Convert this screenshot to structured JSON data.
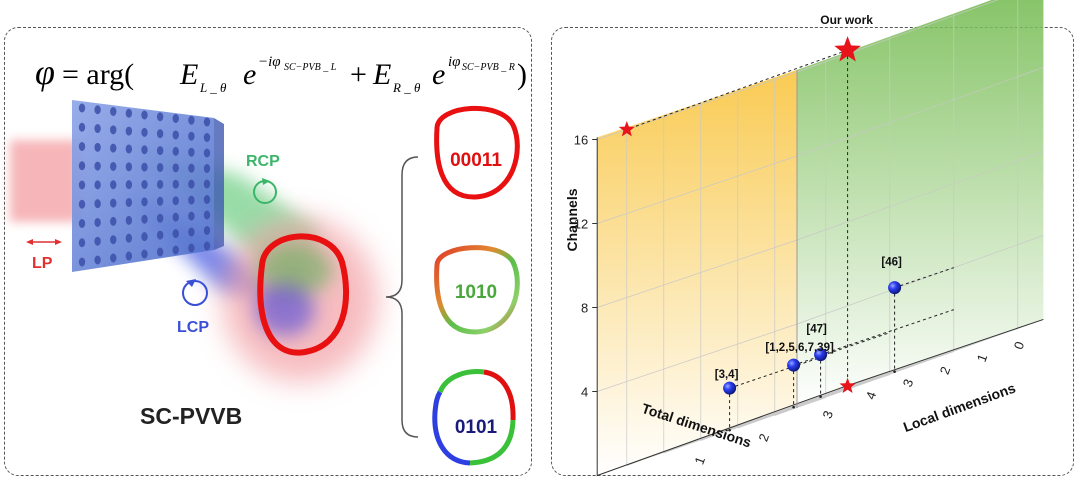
{
  "left": {
    "equation": {
      "phi": "φ",
      "equals": "= arg(",
      "E": "E",
      "sub_L": "L _ θ",
      "sub_R": "R _ θ",
      "e": "e",
      "sup_L": "−iφ",
      "sup_L_sub": "SC−PVB _ L",
      "sup_R": "iφ",
      "sup_R_sub": "SC−PVB _ R",
      "plus": "+",
      "close": ")"
    },
    "label_lp": "LP",
    "label_rcp": "RCP",
    "label_lcp": "LCP",
    "title": "SC-PVVB",
    "codes": [
      "00011",
      "1010",
      "0101"
    ],
    "colors": {
      "lp": "#e03030",
      "rcp": "#3bb56a",
      "lcp": "#3a4fd8",
      "code_red": "#e01010",
      "code_green": "#4aa83a",
      "code_blue": "#1a1a7a"
    }
  },
  "right": {
    "chart_data": {
      "type": "scatter3d",
      "axes": {
        "x": {
          "label": "Total dimensions",
          "ticks": [
            "0",
            "1",
            "2",
            "3",
            "4"
          ]
        },
        "y": {
          "label": "Local dimensions",
          "ticks": [
            "0",
            "1",
            "2",
            "3"
          ]
        },
        "z": {
          "label": "Channels",
          "ticks": [
            "4",
            "8",
            "12",
            "16"
          ],
          "range": [
            0,
            16
          ]
        }
      },
      "points": [
        {
          "label": "[3,4]",
          "total": 2,
          "local": 0,
          "channels": 2,
          "marker": "sphere"
        },
        {
          "label": "[1,2,5,6,7,39]",
          "total": 2,
          "local": 1,
          "channels": 2,
          "marker": "sphere"
        },
        {
          "label": "[46]",
          "total": 1,
          "local": 2,
          "channels": 4,
          "marker": "sphere"
        },
        {
          "label": "[47]",
          "total": 3,
          "local": 2,
          "channels": 2,
          "marker": "sphere"
        },
        {
          "label": "Our work",
          "total": 4,
          "local": 3,
          "channels": 16,
          "marker": "star"
        }
      ],
      "projections": [
        {
          "type": "star",
          "on": "back-left-wall",
          "total": 4,
          "channels": 16
        },
        {
          "type": "star",
          "on": "floor",
          "total": 4,
          "local": 3
        }
      ],
      "colors": {
        "sphere": "#1f2fe0",
        "star": "#e8141c",
        "left_wall": "#f9c84a",
        "right_wall": "#7cbf5a"
      }
    }
  }
}
